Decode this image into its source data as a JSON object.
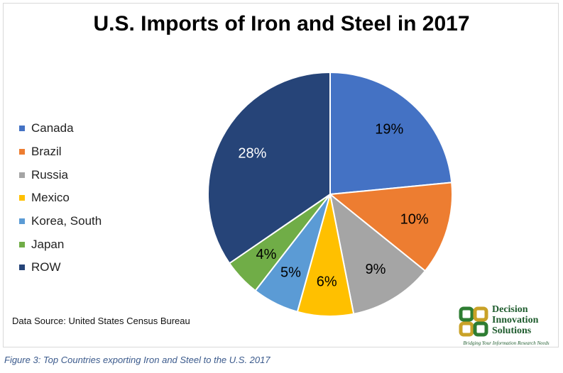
{
  "chart_data": {
    "type": "pie",
    "title": "U.S. Imports of Iron and Steel in 2017",
    "categories": [
      "Canada",
      "Brazil",
      "Russia",
      "Mexico",
      "Korea, South",
      "Japan",
      "ROW"
    ],
    "values": [
      19,
      10,
      9,
      6,
      5,
      4,
      28
    ],
    "value_labels": [
      "19%",
      "10%",
      "9%",
      "6%",
      "5%",
      "4%",
      "28%"
    ],
    "colors": [
      "#4472c4",
      "#ed7d31",
      "#a5a5a5",
      "#ffc000",
      "#5b9bd5",
      "#70ad47",
      "#264478"
    ],
    "label_colors": [
      "#000000",
      "#000000",
      "#000000",
      "#000000",
      "#000000",
      "#000000",
      "#ffffff"
    ],
    "legend_position": "left",
    "start_angle": "12 o'clock",
    "direction": "clockwise"
  },
  "source_note": "Data Source: United States Census Bureau",
  "logo": {
    "line1": "Decision",
    "line2": "Innovation",
    "line3": "Solutions",
    "tagline": "Bridging Your Information Research Needs",
    "color": "#1f5c2e"
  },
  "figure_caption": "Figure 3: Top Countries exporting Iron and Steel to the U.S. 2017"
}
